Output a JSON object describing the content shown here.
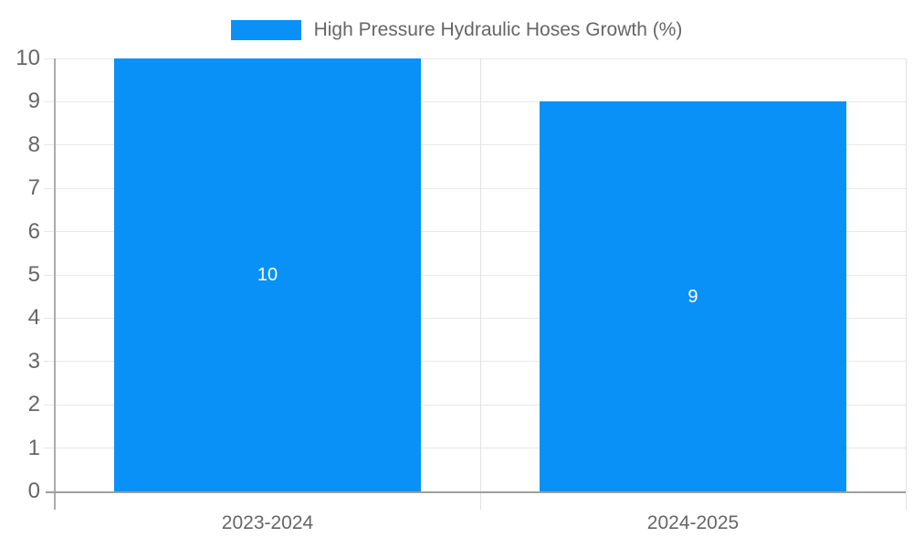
{
  "legend": {
    "label": "High Pressure Hydraulic Hoses Growth (%)"
  },
  "colors": {
    "bar": "#0991F8",
    "label_text": "#666666",
    "bar_label_text": "#FFFFFF",
    "grid": "#E8E8E8",
    "boundary": "#E2E2E2",
    "x_axis": "#9E9E9E",
    "y_axis": "#ABABAB",
    "background": "#FFFFFF"
  },
  "chart_data": {
    "type": "bar",
    "title": "",
    "xlabel": "",
    "ylabel": "",
    "categories": [
      "2023-2024",
      "2024-2025"
    ],
    "series": [
      {
        "name": "High Pressure Hydraulic Hoses Growth (%)",
        "values": [
          10,
          9
        ]
      }
    ],
    "values": [
      10,
      9
    ],
    "bar_labels": [
      "10",
      "9"
    ],
    "ylim": [
      0,
      10
    ],
    "yticks": [
      0,
      1,
      2,
      3,
      4,
      5,
      6,
      7,
      8,
      9,
      10
    ],
    "grid": true,
    "legend_position": "top-center"
  }
}
